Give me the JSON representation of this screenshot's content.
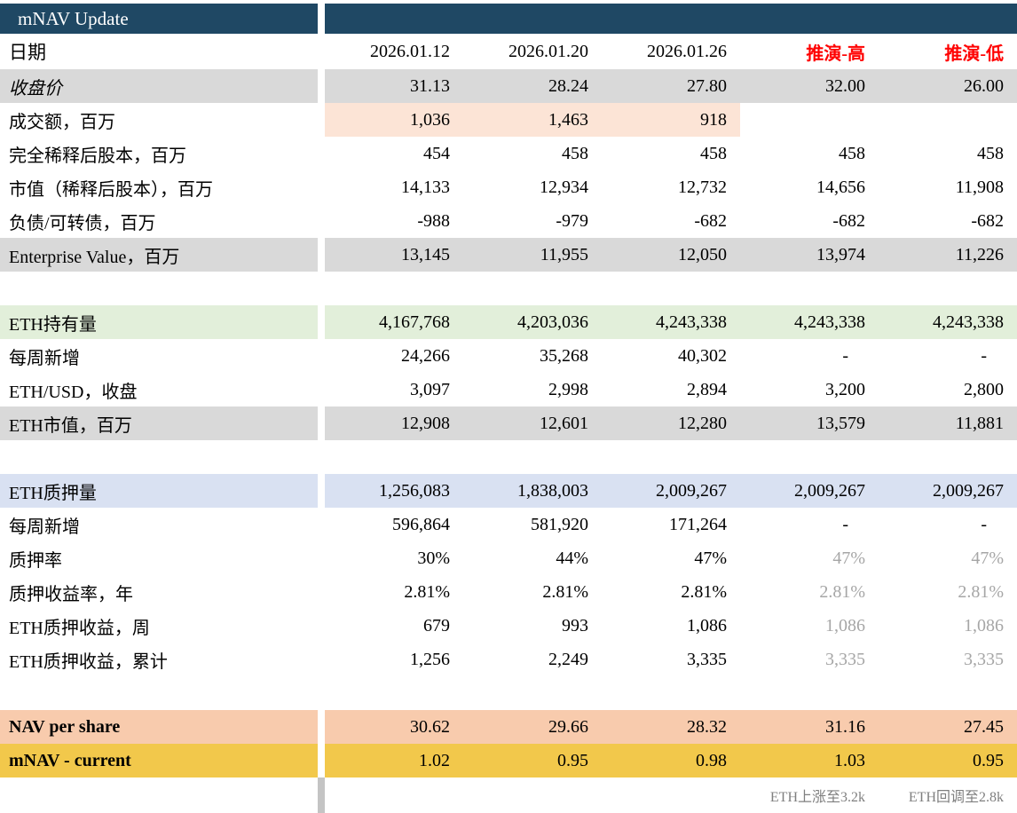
{
  "title": "mNAV Update",
  "date_row": {
    "label": "日期",
    "columns": [
      "2026.01.12",
      "2026.01.20",
      "2026.01.26",
      "推演-高",
      "推演-低"
    ]
  },
  "rows": [
    {
      "label": "收盘价",
      "italic": true,
      "bg": "gray",
      "values": [
        "31.13",
        "28.24",
        "27.80",
        "32.00",
        "26.00"
      ]
    },
    {
      "label": "成交额，百万",
      "values": [
        "1,036",
        "1,463",
        "918",
        "",
        ""
      ],
      "value_bg": "peach",
      "value_bg_cols": [
        0,
        1,
        2
      ]
    },
    {
      "label": "完全稀释后股本，百万",
      "values": [
        "454",
        "458",
        "458",
        "458",
        "458"
      ]
    },
    {
      "label": "市值（稀释后股本），百万",
      "values": [
        "14,133",
        "12,934",
        "12,732",
        "14,656",
        "11,908"
      ]
    },
    {
      "label": "负债/可转债，百万",
      "values": [
        "-988",
        "-979",
        "-682",
        "-682",
        "-682"
      ]
    },
    {
      "label": "Enterprise Value，百万",
      "bg": "gray",
      "values": [
        "13,145",
        "11,955",
        "12,050",
        "13,974",
        "11,226"
      ]
    },
    {
      "spacer": true
    },
    {
      "label": "ETH持有量",
      "bg": "green",
      "values": [
        "4,167,768",
        "4,203,036",
        "4,243,338",
        "4,243,338",
        "4,243,338"
      ]
    },
    {
      "label": "每周新增",
      "values": [
        "24,266",
        "35,268",
        "40,302",
        "-",
        "-"
      ]
    },
    {
      "label": "ETH/USD，收盘",
      "values": [
        "3,097",
        "2,998",
        "2,894",
        "3,200",
        "2,800"
      ]
    },
    {
      "label": "ETH市值，百万",
      "bg": "gray",
      "values": [
        "12,908",
        "12,601",
        "12,280",
        "13,579",
        "11,881"
      ]
    },
    {
      "spacer": true
    },
    {
      "label": "ETH质押量",
      "bg": "blue",
      "values": [
        "1,256,083",
        "1,838,003",
        "2,009,267",
        "2,009,267",
        "2,009,267"
      ]
    },
    {
      "label": "每周新增",
      "values": [
        "596,864",
        "581,920",
        "171,264",
        "-",
        "-"
      ]
    },
    {
      "label": "质押率",
      "values": [
        "30%",
        "44%",
        "47%",
        "47%",
        "47%"
      ],
      "muted_cols": [
        3,
        4
      ]
    },
    {
      "label": "质押收益率，年",
      "values": [
        "2.81%",
        "2.81%",
        "2.81%",
        "2.81%",
        "2.81%"
      ],
      "muted_cols": [
        3,
        4
      ]
    },
    {
      "label": "ETH质押收益，周",
      "values": [
        "679",
        "993",
        "1,086",
        "1,086",
        "1,086"
      ],
      "muted_cols": [
        3,
        4
      ]
    },
    {
      "label": "ETH质押收益，累计",
      "values": [
        "1,256",
        "2,249",
        "3,335",
        "3,335",
        "3,335"
      ],
      "muted_cols": [
        3,
        4
      ]
    },
    {
      "spacer": true
    },
    {
      "label": "NAV per share",
      "bold": true,
      "bg": "orange",
      "values": [
        "30.62",
        "29.66",
        "28.32",
        "31.16",
        "27.45"
      ]
    },
    {
      "label": "mNAV - current",
      "bold": true,
      "bg": "gold",
      "values": [
        "1.02",
        "0.95",
        "0.98",
        "1.03",
        "0.95"
      ]
    }
  ],
  "footnotes": [
    "",
    "",
    "",
    "ETH上涨至3.2k",
    "ETH回调至2.8k"
  ],
  "colors": {
    "header_bg": "#1f4864",
    "accent_red": "#ff0000",
    "muted_text": "#a6a6a6",
    "row_gray": "#d9d9d9",
    "band_green": "#e2efda",
    "band_blue": "#d9e1f2",
    "cell_peach": "#fce4d6",
    "band_orange": "#f8cbad",
    "band_gold": "#f2c84b",
    "footnote_gray": "#7f7f7f"
  }
}
